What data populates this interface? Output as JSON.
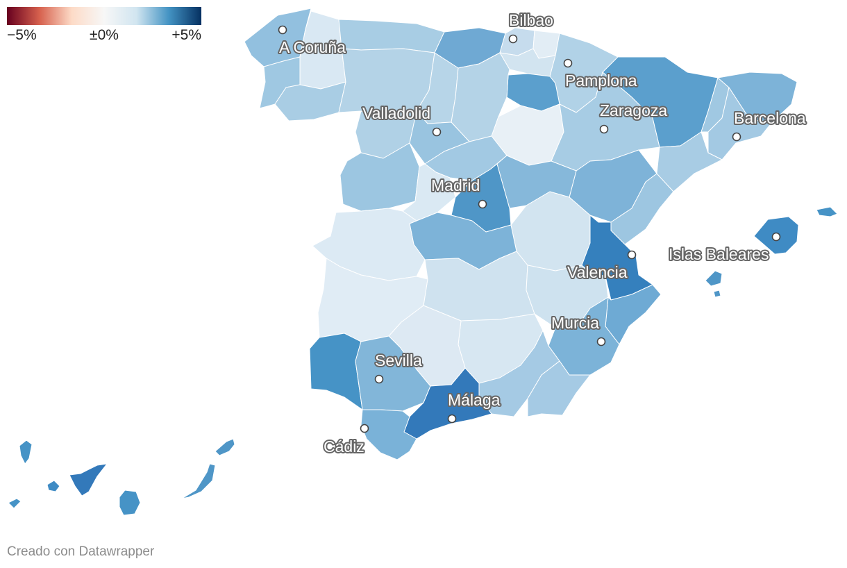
{
  "legend": {
    "min_label": "−5%",
    "mid_label": "±0%",
    "max_label": "+5%",
    "colors": [
      "#67001f",
      "#d6604d",
      "#fddbc7",
      "#f7f7f7",
      "#d1e5f0",
      "#4393c3",
      "#053061"
    ]
  },
  "cities": [
    {
      "name": "A Coruña"
    },
    {
      "name": "Bilbao"
    },
    {
      "name": "Pamplona"
    },
    {
      "name": "Zaragoza"
    },
    {
      "name": "Barcelona"
    },
    {
      "name": "Valladolid"
    },
    {
      "name": "Madrid"
    },
    {
      "name": "Valencia"
    },
    {
      "name": "Islas Baleares"
    },
    {
      "name": "Murcia"
    },
    {
      "name": "Sevilla"
    },
    {
      "name": "Málaga"
    },
    {
      "name": "Cádiz"
    }
  ],
  "credit": "Creado con Datawrapper"
}
